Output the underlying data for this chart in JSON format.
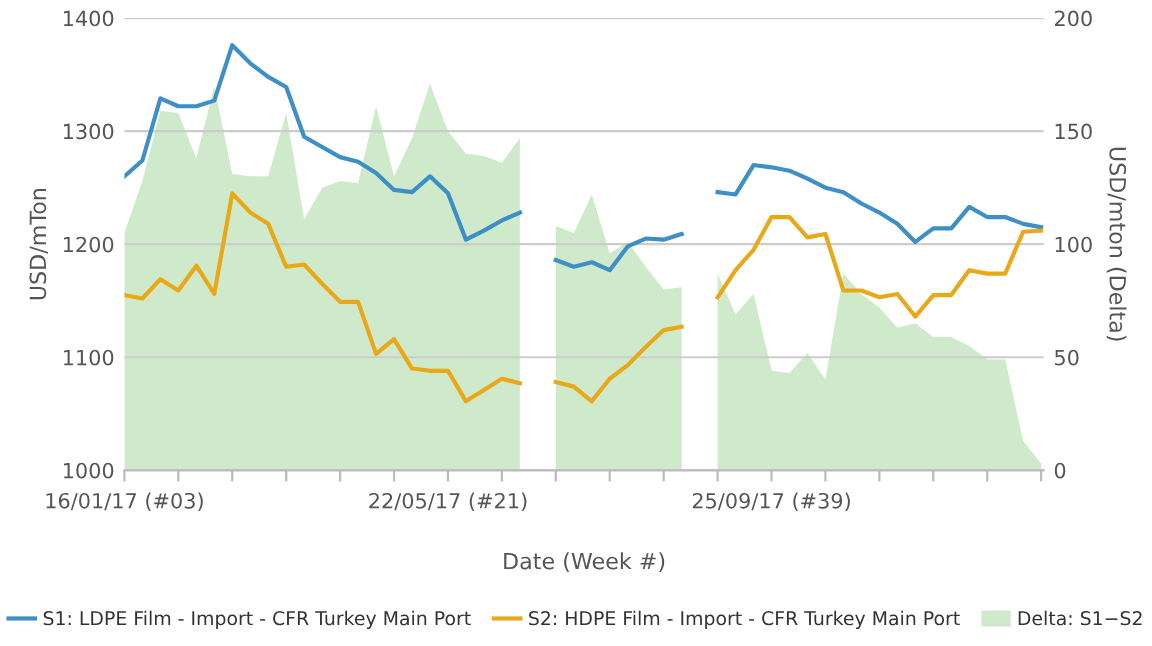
{
  "chart_data": {
    "type": "line",
    "xlabel": "Date (Week #)",
    "ylabel": "USD/mTon",
    "y2label": "USD/mton (Delta)",
    "x": [
      "2017-01-16",
      "2017-01-23",
      "2017-01-30",
      "2017-02-06",
      "2017-02-13",
      "2017-02-20",
      "2017-02-27",
      "2017-03-06",
      "2017-03-13",
      "2017-03-20",
      "2017-03-27",
      "2017-04-03",
      "2017-04-10",
      "2017-04-17",
      "2017-04-24",
      "2017-05-01",
      "2017-05-08",
      "2017-05-15",
      "2017-05-22",
      "2017-05-29",
      "2017-06-05",
      "2017-06-12",
      "2017-06-19",
      "2017-06-26",
      "2017-07-03",
      "2017-07-10",
      "2017-07-17",
      "2017-07-24",
      "2017-07-31",
      "2017-08-07",
      "2017-08-14",
      "2017-08-21",
      "2017-08-28",
      "2017-09-04",
      "2017-09-11",
      "2017-09-18",
      "2017-09-25",
      "2017-10-02",
      "2017-10-09",
      "2017-10-16",
      "2017-10-23",
      "2017-10-30",
      "2017-11-06",
      "2017-11-13",
      "2017-11-20",
      "2017-11-27",
      "2017-12-04",
      "2017-12-11",
      "2017-12-18",
      "2017-12-25",
      "2018-01-01",
      "2018-01-08"
    ],
    "series": [
      {
        "name": "S1: LDPE Film - Import - CFR Turkey Main Port",
        "axis": "y",
        "color": "#3d8fc6",
        "values": [
          1260,
          1274,
          1329,
          1322,
          1322,
          1327,
          1376,
          1360,
          1348,
          1339,
          1295,
          1286,
          1277,
          1273,
          1263,
          1248,
          1246,
          1260,
          1245,
          1204,
          1212,
          1221,
          1228,
          null,
          1186,
          1180,
          1184,
          1177,
          1198,
          1205,
          1204,
          1209,
          null,
          1246,
          1244,
          1270,
          1268,
          1265,
          1258,
          1250,
          1246,
          1236,
          1228,
          1218,
          1202,
          1214,
          1214,
          1233,
          1224,
          1224,
          1218,
          1215
        ]
      },
      {
        "name": "S2: HDPE Film - Import - CFR Turkey Main Port",
        "axis": "y",
        "color": "#e8a817",
        "values": [
          1155,
          1152,
          1169,
          1159,
          1181,
          1156,
          1245,
          1228,
          1218,
          1180,
          1182,
          1165,
          1149,
          1149,
          1103,
          1116,
          1090,
          1088,
          1088,
          1061,
          1071,
          1081,
          1077,
          null,
          1078,
          1074,
          1061,
          1081,
          1093,
          1109,
          1124,
          1127,
          null,
          1153,
          1177,
          1195,
          1224,
          1224,
          1206,
          1209,
          1159,
          1159,
          1153,
          1156,
          1136,
          1155,
          1155,
          1177,
          1174,
          1174,
          1211,
          1212
        ]
      },
      {
        "name": "Delta: S1−S2",
        "type": "area",
        "axis": "y2",
        "color": "#cfeacb",
        "values": [
          105,
          128,
          159,
          158,
          138,
          170,
          131,
          130,
          130,
          158,
          111,
          125,
          128,
          127,
          161,
          130,
          147,
          171,
          150,
          140,
          139,
          136,
          147,
          null,
          108,
          105,
          122,
          96,
          101,
          90,
          80,
          81,
          null,
          87,
          69,
          78,
          44,
          43,
          52,
          40,
          87,
          78,
          72,
          63,
          65,
          59,
          59,
          55,
          49,
          49,
          13,
          3
        ]
      }
    ],
    "xlim": [
      "2017-01-16",
      "2018-01-09"
    ],
    "xticks": [
      {
        "value": "2017-01-16",
        "label": "16/01/17 (#03)"
      },
      {
        "value": "2017-02-06",
        "label": null
      },
      {
        "value": "2017-02-27",
        "label": null
      },
      {
        "value": "2017-03-20",
        "label": null
      },
      {
        "value": "2017-04-10",
        "label": null
      },
      {
        "value": "2017-05-01",
        "label": null
      },
      {
        "value": "2017-05-22",
        "label": "22/05/17 (#21)"
      },
      {
        "value": "2017-06-12",
        "label": null
      },
      {
        "value": "2017-07-03",
        "label": null
      },
      {
        "value": "2017-07-24",
        "label": null
      },
      {
        "value": "2017-08-14",
        "label": null
      },
      {
        "value": "2017-09-04",
        "label": null
      },
      {
        "value": "2017-09-25",
        "label": "25/09/17 (#39)"
      },
      {
        "value": "2017-10-16",
        "label": null
      },
      {
        "value": "2017-11-06",
        "label": null
      },
      {
        "value": "2017-11-27",
        "label": null
      },
      {
        "value": "2017-12-18",
        "label": null
      },
      {
        "value": "2018-01-08",
        "label": null
      }
    ],
    "ylim": [
      1000,
      1400
    ],
    "yticks": [
      1000,
      1100,
      1200,
      1300,
      1400
    ],
    "y2lim": [
      0,
      200
    ],
    "y2ticks": [
      0,
      50,
      100,
      150,
      200
    ],
    "grid": "y",
    "legend": "bottom",
    "marker": "none",
    "line_style": "solid"
  }
}
